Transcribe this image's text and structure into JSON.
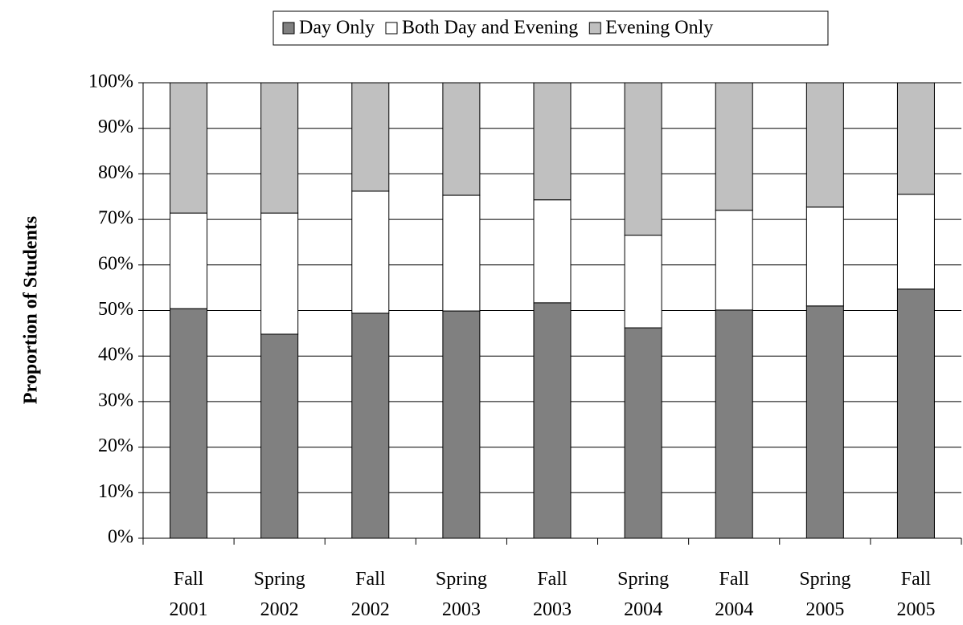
{
  "chart_data": {
    "type": "stacked-bar",
    "y_label": "Proportion of Students",
    "categories": [
      "Fall 2001",
      "Spring 2002",
      "Fall 2002",
      "Spring 2003",
      "Fall 2003",
      "Spring 2004",
      "Fall 2004",
      "Spring 2005",
      "Fall 2005"
    ],
    "series": [
      {
        "name": "Day Only",
        "color": "#808080",
        "values": [
          50.4,
          44.8,
          49.4,
          49.9,
          51.7,
          46.2,
          50.1,
          51.0,
          54.7
        ]
      },
      {
        "name": "Both Day and Evening",
        "color": "#ffffff",
        "values": [
          21.0,
          26.6,
          26.8,
          25.4,
          22.6,
          20.3,
          21.9,
          21.7,
          20.8
        ]
      },
      {
        "name": "Evening Only",
        "color": "#c0c0c0",
        "values": [
          28.6,
          28.6,
          23.8,
          24.7,
          25.7,
          33.5,
          28.0,
          27.3,
          24.5
        ]
      }
    ],
    "ylim": [
      0,
      100
    ],
    "yticks": [
      {
        "value": 0,
        "label": "0%"
      },
      {
        "value": 10,
        "label": "10%"
      },
      {
        "value": 20,
        "label": "20%"
      },
      {
        "value": 30,
        "label": "30%"
      },
      {
        "value": 40,
        "label": "40%"
      },
      {
        "value": 50,
        "label": "50%"
      },
      {
        "value": 60,
        "label": "60%"
      },
      {
        "value": 70,
        "label": "70%"
      },
      {
        "value": 80,
        "label": "80%"
      },
      {
        "value": 90,
        "label": "90%"
      },
      {
        "value": 100,
        "label": "100%"
      }
    ],
    "grid": true,
    "legend": "top"
  }
}
